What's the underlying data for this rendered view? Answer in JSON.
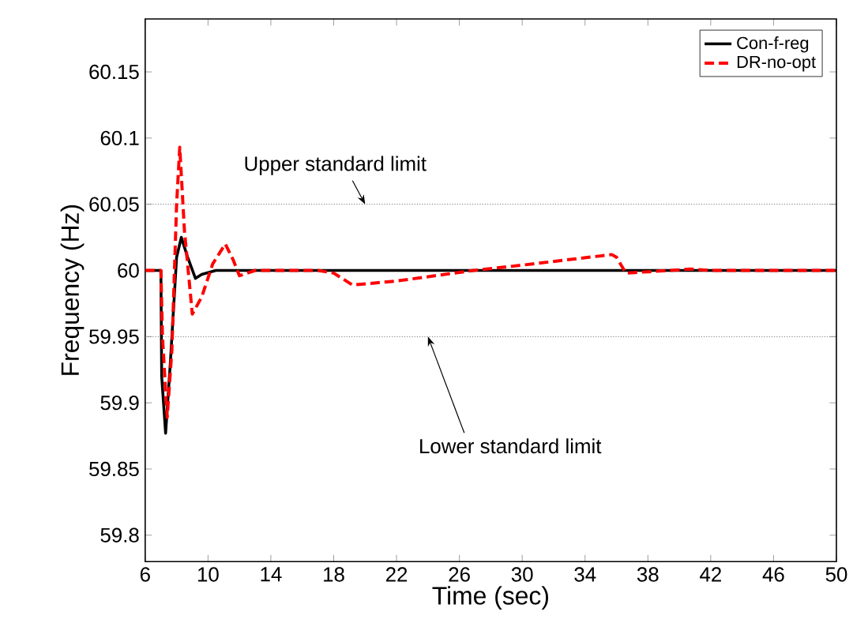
{
  "chart_data": {
    "type": "line",
    "xlabel": "Time (sec)",
    "ylabel": "Frequency (Hz)",
    "xlim": [
      6,
      50
    ],
    "ylim": [
      59.78,
      60.19
    ],
    "xticks": [
      6,
      10,
      14,
      18,
      22,
      26,
      30,
      34,
      38,
      42,
      46,
      50
    ],
    "yticks": [
      59.8,
      59.85,
      59.9,
      59.95,
      60,
      60.05,
      60.1,
      60.15
    ],
    "grid": false,
    "legend": "top right",
    "series": [
      {
        "name": "Con-f-reg",
        "color": "#000000",
        "line_style": "solid",
        "x": [
          6,
          7.0,
          7.05,
          7.3,
          7.6,
          8.0,
          8.3,
          8.7,
          9.2,
          9.6,
          10.5,
          12,
          20,
          30,
          40,
          50
        ],
        "values": [
          60,
          60,
          59.92,
          59.877,
          59.93,
          60.01,
          60.025,
          60.01,
          59.994,
          59.997,
          60,
          60,
          60,
          60,
          60,
          60
        ]
      },
      {
        "name": "DR-no-opt",
        "color": "#ff0000",
        "line_style": "dashed",
        "x": [
          6,
          7.0,
          7.1,
          7.4,
          7.7,
          8.0,
          8.2,
          8.5,
          9.0,
          9.6,
          10.3,
          11.1,
          11.6,
          12.0,
          13,
          17,
          18,
          19.2,
          22,
          26.9,
          30,
          35.7,
          36.0,
          36.6,
          38,
          40.7,
          42,
          46,
          50
        ],
        "values": [
          60,
          60,
          59.95,
          59.889,
          59.94,
          60.05,
          60.093,
          60.03,
          59.967,
          59.98,
          60.005,
          60.02,
          60.008,
          59.996,
          60,
          60,
          59.998,
          59.989,
          59.992,
          60,
          60.004,
          60.012,
          60.01,
          59.998,
          59.999,
          60.001,
          60,
          60,
          60
        ]
      }
    ],
    "ref_lines": [
      {
        "axis": "y",
        "value": 60.05,
        "color": "#888888",
        "line_style": "dotted"
      },
      {
        "axis": "y",
        "value": 59.95,
        "color": "#888888",
        "line_style": "dotted"
      }
    ],
    "annotations": [
      {
        "text": "Upper standard limit",
        "x": 20,
        "y": 60.05
      },
      {
        "text": "Lower standard limit",
        "x": 24,
        "y": 59.95
      }
    ]
  }
}
